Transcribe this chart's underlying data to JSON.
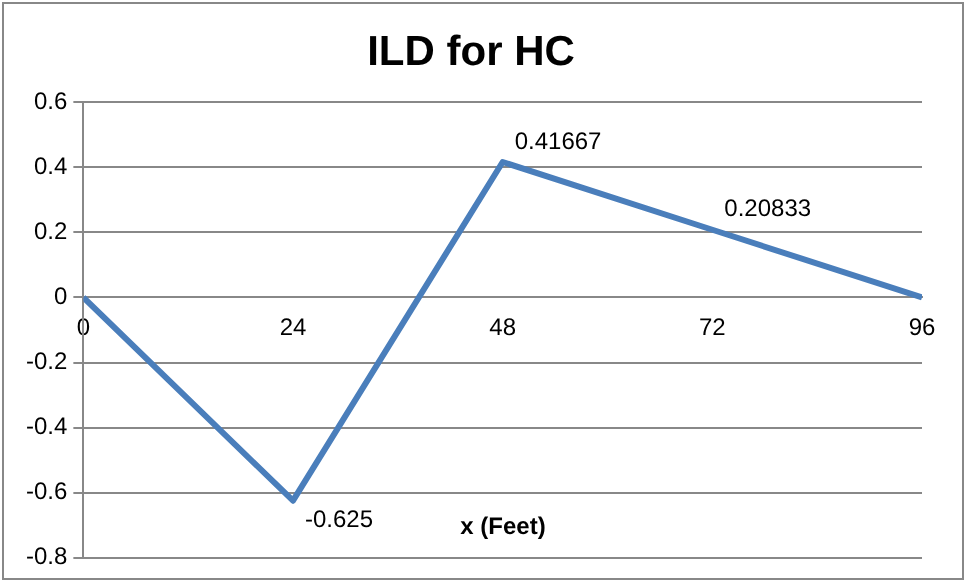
{
  "chart_data": {
    "type": "line",
    "title": "ILD for HC",
    "xlabel": "x (Feet)",
    "x": [
      0,
      24,
      48,
      72,
      96
    ],
    "series": [
      {
        "color": "#4a7ebb",
        "values": [
          0,
          -0.625,
          0.41667,
          0.20833,
          0
        ],
        "value_labels": [
          null,
          "-0.625",
          "0.41667",
          "0.20833",
          null
        ]
      }
    ],
    "xlim": [
      0,
      96
    ],
    "xticks": [
      0,
      24,
      48,
      72,
      96
    ],
    "ylim": [
      -0.8,
      0.6
    ],
    "yticks": [
      -0.8,
      -0.6,
      -0.4,
      -0.2,
      0,
      0.2,
      0.4,
      0.6
    ],
    "grid": "y",
    "legend": false,
    "marker": "none",
    "line_style": "solid"
  }
}
